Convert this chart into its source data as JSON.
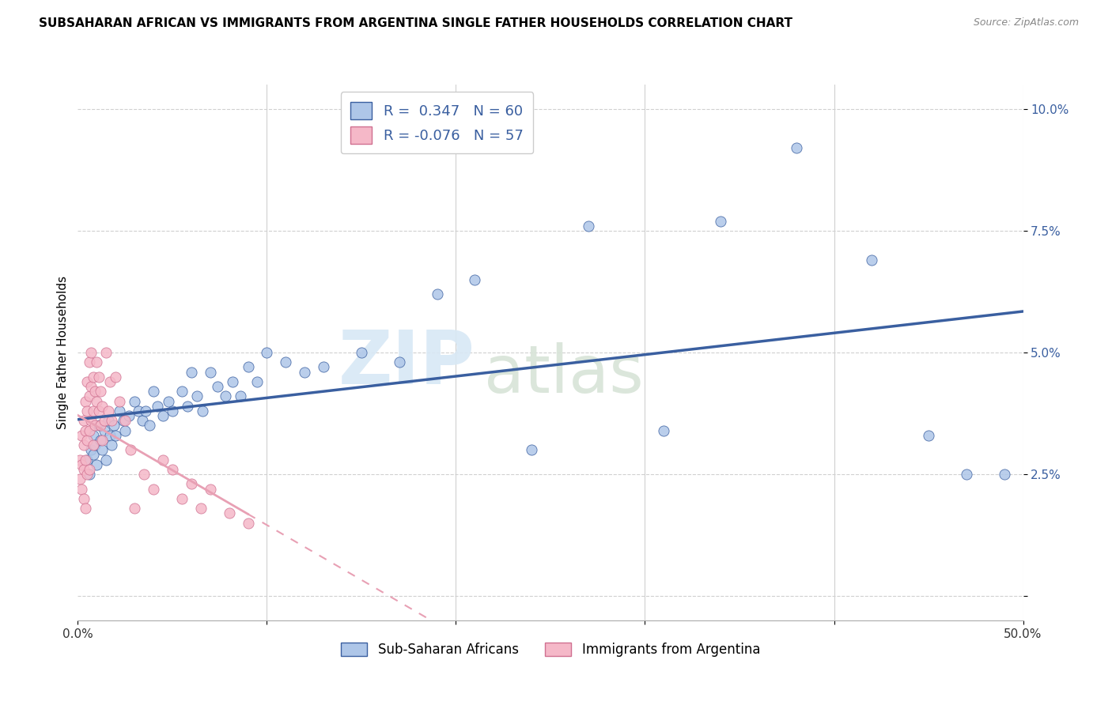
{
  "title": "SUBSAHARAN AFRICAN VS IMMIGRANTS FROM ARGENTINA SINGLE FATHER HOUSEHOLDS CORRELATION CHART",
  "source": "Source: ZipAtlas.com",
  "ylabel": "Single Father Households",
  "xlim": [
    0.0,
    0.5
  ],
  "ylim": [
    -0.005,
    0.105
  ],
  "blue_R": 0.347,
  "blue_N": 60,
  "pink_R": -0.076,
  "pink_N": 57,
  "blue_color": "#aec6e8",
  "pink_color": "#f5b8c8",
  "blue_line_color": "#3a5fa0",
  "pink_line_color": "#e8a0b4",
  "watermark_zip": "ZIP",
  "watermark_atlas": "atlas",
  "legend_label_blue": "Sub-Saharan Africans",
  "legend_label_pink": "Immigrants from Argentina",
  "blue_scatter_x": [
    0.005,
    0.006,
    0.007,
    0.008,
    0.008,
    0.009,
    0.01,
    0.011,
    0.012,
    0.013,
    0.014,
    0.015,
    0.016,
    0.017,
    0.018,
    0.019,
    0.02,
    0.022,
    0.024,
    0.025,
    0.027,
    0.03,
    0.032,
    0.034,
    0.036,
    0.038,
    0.04,
    0.042,
    0.045,
    0.048,
    0.05,
    0.055,
    0.058,
    0.06,
    0.063,
    0.066,
    0.07,
    0.074,
    0.078,
    0.082,
    0.086,
    0.09,
    0.095,
    0.1,
    0.11,
    0.12,
    0.13,
    0.15,
    0.17,
    0.19,
    0.21,
    0.24,
    0.27,
    0.31,
    0.34,
    0.38,
    0.42,
    0.45,
    0.47,
    0.49
  ],
  "blue_scatter_y": [
    0.028,
    0.025,
    0.03,
    0.033,
    0.029,
    0.031,
    0.027,
    0.035,
    0.032,
    0.03,
    0.034,
    0.028,
    0.036,
    0.033,
    0.031,
    0.035,
    0.033,
    0.038,
    0.036,
    0.034,
    0.037,
    0.04,
    0.038,
    0.036,
    0.038,
    0.035,
    0.042,
    0.039,
    0.037,
    0.04,
    0.038,
    0.042,
    0.039,
    0.046,
    0.041,
    0.038,
    0.046,
    0.043,
    0.041,
    0.044,
    0.041,
    0.047,
    0.044,
    0.05,
    0.048,
    0.046,
    0.047,
    0.05,
    0.048,
    0.062,
    0.065,
    0.03,
    0.076,
    0.034,
    0.077,
    0.092,
    0.069,
    0.033,
    0.025,
    0.025
  ],
  "pink_scatter_x": [
    0.001,
    0.001,
    0.002,
    0.002,
    0.002,
    0.003,
    0.003,
    0.003,
    0.003,
    0.004,
    0.004,
    0.004,
    0.004,
    0.005,
    0.005,
    0.005,
    0.005,
    0.006,
    0.006,
    0.006,
    0.006,
    0.007,
    0.007,
    0.007,
    0.008,
    0.008,
    0.008,
    0.009,
    0.009,
    0.01,
    0.01,
    0.011,
    0.011,
    0.012,
    0.012,
    0.013,
    0.013,
    0.014,
    0.015,
    0.016,
    0.017,
    0.018,
    0.02,
    0.022,
    0.025,
    0.028,
    0.03,
    0.035,
    0.04,
    0.045,
    0.05,
    0.055,
    0.06,
    0.065,
    0.07,
    0.08,
    0.09
  ],
  "pink_scatter_y": [
    0.028,
    0.024,
    0.033,
    0.027,
    0.022,
    0.036,
    0.031,
    0.026,
    0.02,
    0.04,
    0.034,
    0.028,
    0.018,
    0.044,
    0.038,
    0.032,
    0.025,
    0.048,
    0.041,
    0.034,
    0.026,
    0.05,
    0.043,
    0.036,
    0.045,
    0.038,
    0.031,
    0.042,
    0.035,
    0.048,
    0.04,
    0.045,
    0.038,
    0.042,
    0.035,
    0.039,
    0.032,
    0.036,
    0.05,
    0.038,
    0.044,
    0.036,
    0.045,
    0.04,
    0.036,
    0.03,
    0.018,
    0.025,
    0.022,
    0.028,
    0.026,
    0.02,
    0.023,
    0.018,
    0.022,
    0.017,
    0.015
  ],
  "background_color": "#ffffff",
  "grid_color": "#d0d0d0",
  "title_fontsize": 11,
  "source_fontsize": 9,
  "tick_fontsize": 11,
  "ylabel_fontsize": 11
}
